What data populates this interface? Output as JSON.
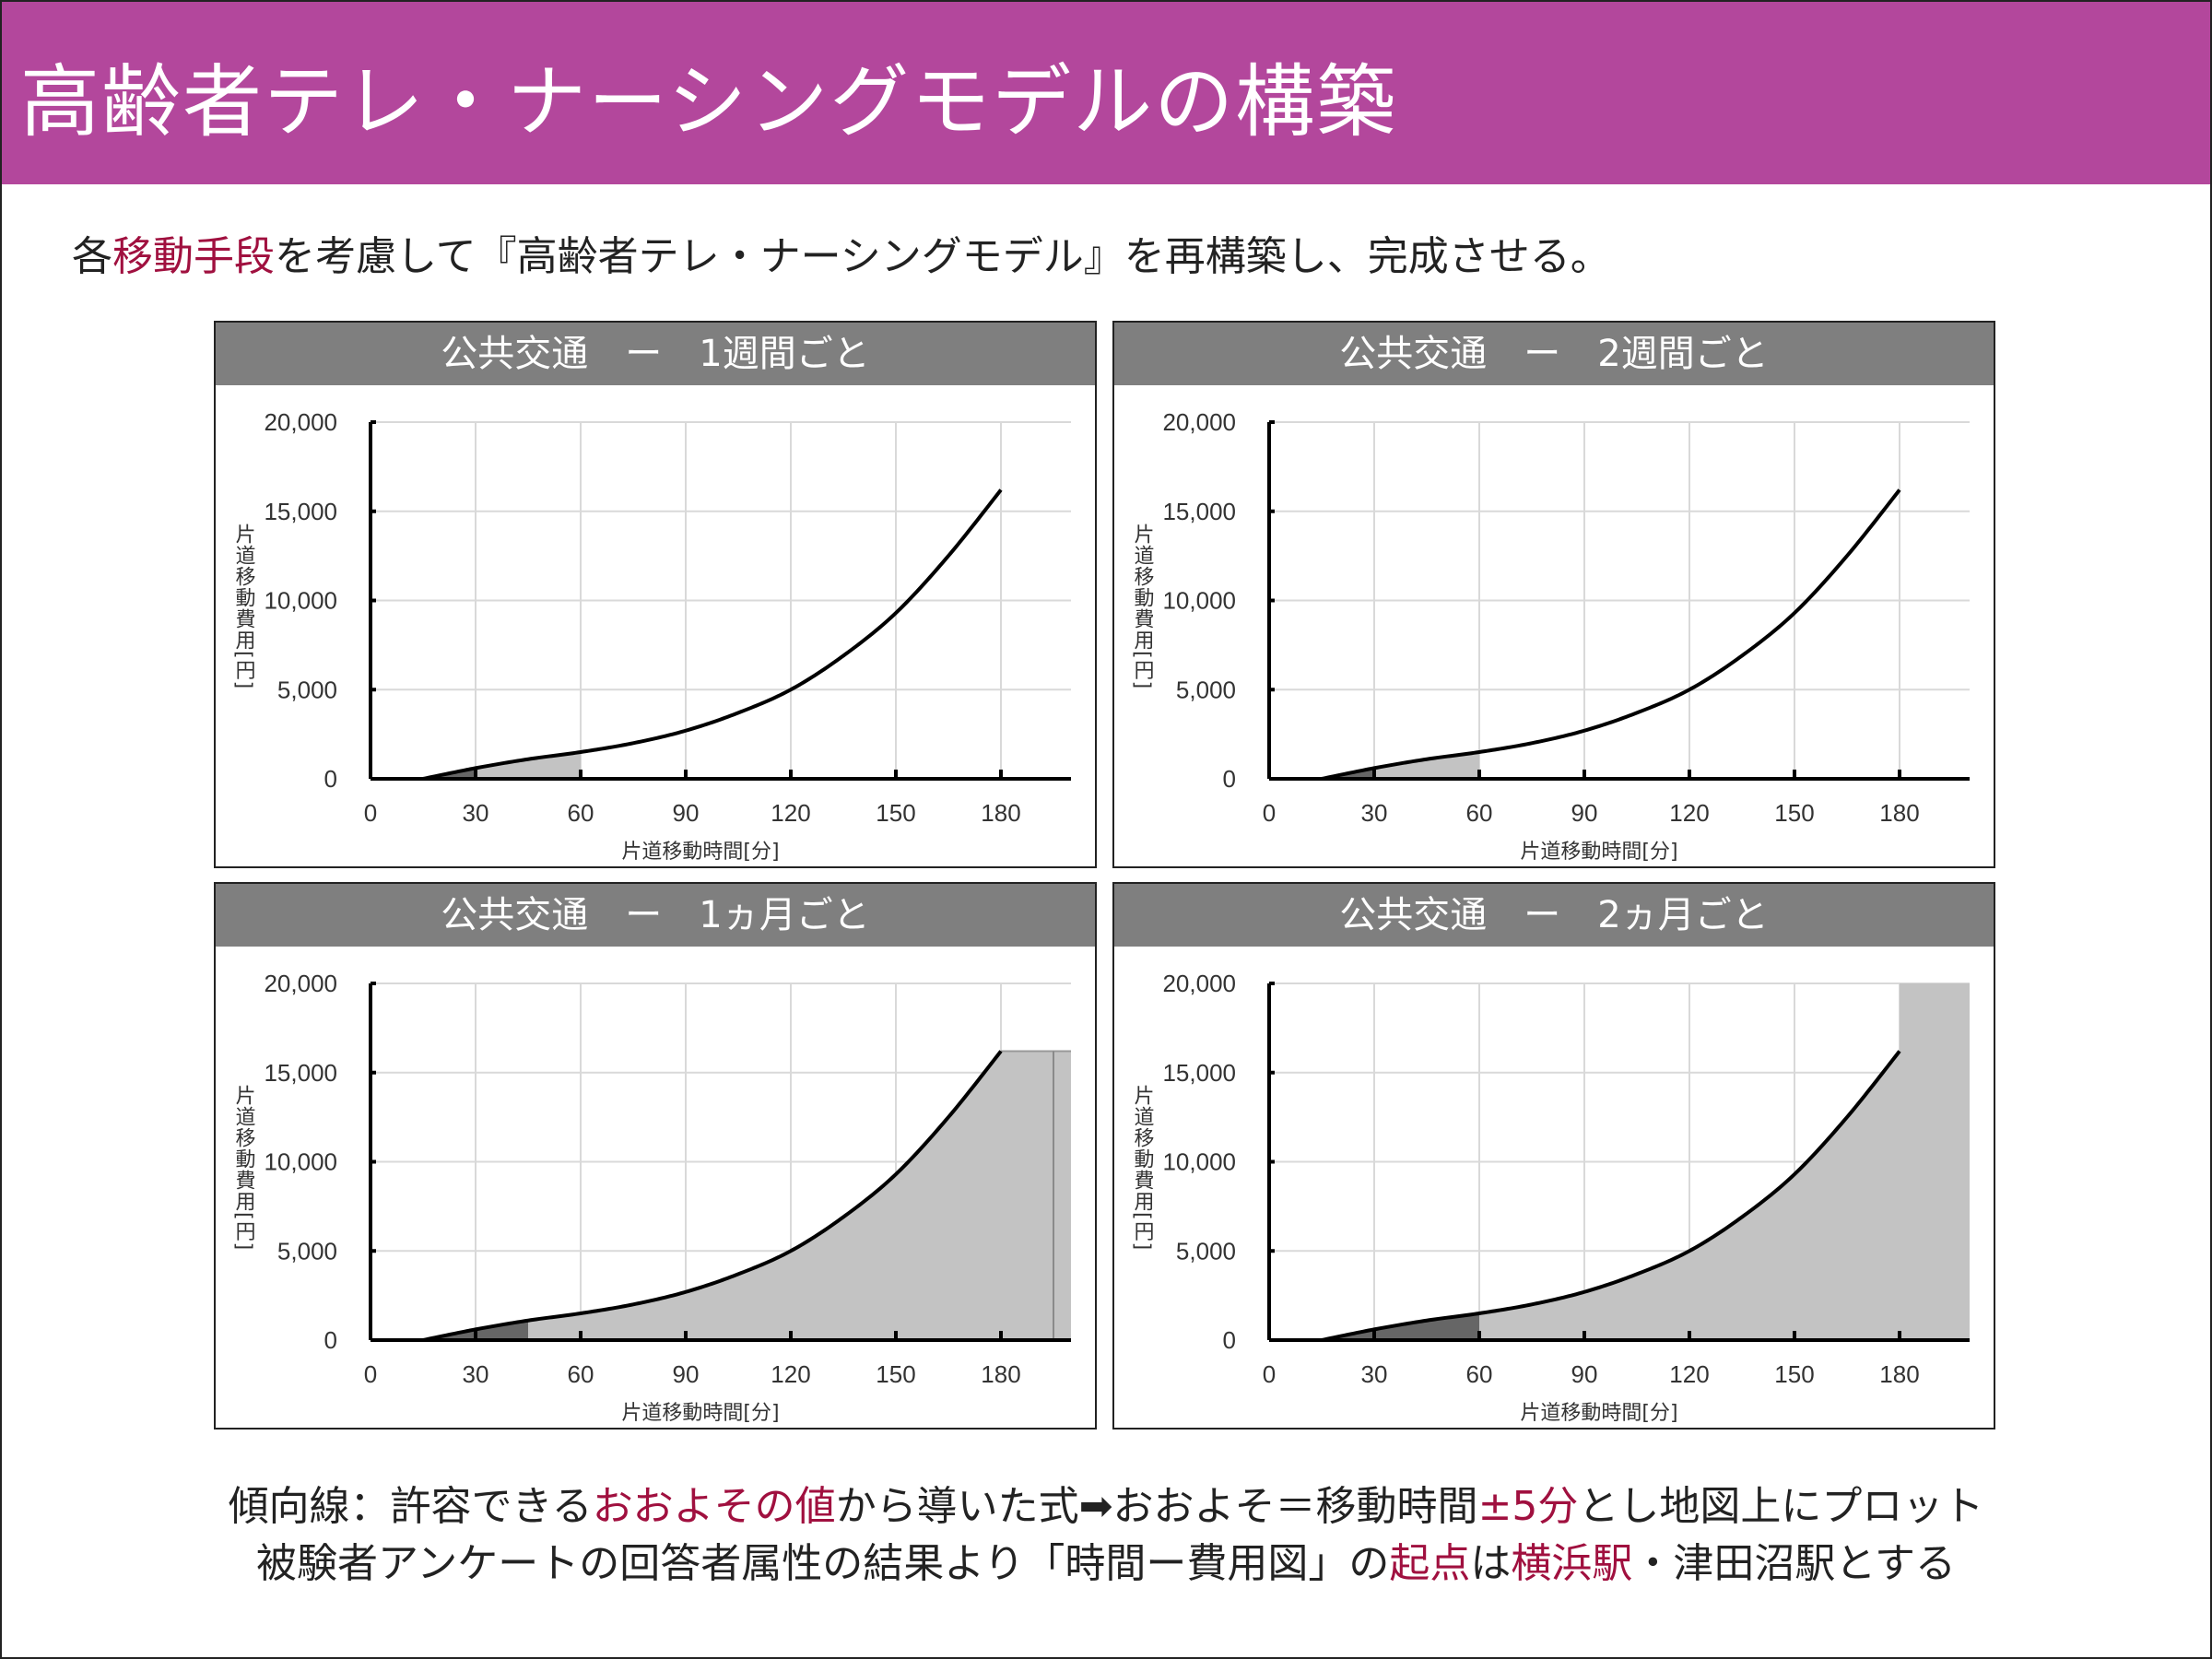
{
  "header": {
    "title": "高齢者テレ・ナーシングモデルの構築"
  },
  "subtitle": {
    "pre": "各",
    "highlight": "移動手段",
    "post": "を考慮して『高齢者テレ・ナーシングモデル』を再構築し、完成させる。"
  },
  "colors": {
    "accent": "#b3479c",
    "highlight": "#a0103f",
    "panel_header": "#7f7f7f",
    "dark_fill": "#666666",
    "light_fill": "#c3c3c3"
  },
  "chart_data": [
    {
      "type": "line",
      "title": "公共交通　ー　1週間ごと",
      "xlabel": "片道移動時間[分]",
      "ylabel": "片道移動費用[円]",
      "xlim": [
        0,
        200
      ],
      "ylim": [
        0,
        20000
      ],
      "xticks": [
        "0",
        "30",
        "60",
        "90",
        "120",
        "150",
        "180"
      ],
      "yticks": [
        "0",
        "5,000",
        "10,000",
        "15,000",
        "20,000"
      ],
      "grid": true,
      "x": [
        15,
        30,
        45,
        60,
        75,
        90,
        105,
        120,
        135,
        150,
        165,
        180
      ],
      "y": [
        0,
        600,
        1100,
        1500,
        2000,
        2700,
        3700,
        5000,
        6900,
        9300,
        12500,
        16200
      ],
      "shaded": [
        {
          "from": 15,
          "to": 30,
          "shade": "dark"
        },
        {
          "from": 30,
          "to": 60,
          "shade": "light"
        }
      ],
      "extension": null
    },
    {
      "type": "line",
      "title": "公共交通　ー　2週間ごと",
      "xlabel": "片道移動時間[分]",
      "ylabel": "片道移動費用[円]",
      "xlim": [
        0,
        200
      ],
      "ylim": [
        0,
        20000
      ],
      "xticks": [
        "0",
        "30",
        "60",
        "90",
        "120",
        "150",
        "180"
      ],
      "yticks": [
        "0",
        "5,000",
        "10,000",
        "15,000",
        "20,000"
      ],
      "grid": true,
      "x": [
        15,
        30,
        45,
        60,
        75,
        90,
        105,
        120,
        135,
        150,
        165,
        180
      ],
      "y": [
        0,
        600,
        1100,
        1500,
        2000,
        2700,
        3700,
        5000,
        6900,
        9300,
        12500,
        16200
      ],
      "shaded": [
        {
          "from": 15,
          "to": 30,
          "shade": "dark"
        },
        {
          "from": 30,
          "to": 60,
          "shade": "light"
        }
      ],
      "extension": null
    },
    {
      "type": "line",
      "title": "公共交通　ー　1ヵ月ごと",
      "xlabel": "片道移動時間[分]",
      "ylabel": "片道移動費用[円]",
      "xlim": [
        0,
        200
      ],
      "ylim": [
        0,
        20000
      ],
      "xticks": [
        "0",
        "30",
        "60",
        "90",
        "120",
        "150",
        "180"
      ],
      "yticks": [
        "0",
        "5,000",
        "10,000",
        "15,000",
        "20,000"
      ],
      "grid": true,
      "x": [
        15,
        30,
        45,
        60,
        75,
        90,
        105,
        120,
        135,
        150,
        165,
        180
      ],
      "y": [
        0,
        600,
        1100,
        1500,
        2000,
        2700,
        3700,
        5000,
        6900,
        9300,
        12500,
        16200
      ],
      "shaded": [
        {
          "from": 15,
          "to": 45,
          "shade": "dark"
        },
        {
          "from": 45,
          "to": 180,
          "shade": "light"
        }
      ],
      "extension": {
        "from": 180,
        "to": 200,
        "value": 16200,
        "divider": 195
      }
    },
    {
      "type": "line",
      "title": "公共交通　ー　2ヵ月ごと",
      "xlabel": "片道移動時間[分]",
      "ylabel": "片道移動費用[円]",
      "xlim": [
        0,
        200
      ],
      "ylim": [
        0,
        20000
      ],
      "xticks": [
        "0",
        "30",
        "60",
        "90",
        "120",
        "150",
        "180"
      ],
      "yticks": [
        "0",
        "5,000",
        "10,000",
        "15,000",
        "20,000"
      ],
      "grid": true,
      "x": [
        15,
        30,
        45,
        60,
        75,
        90,
        105,
        120,
        135,
        150,
        165,
        180
      ],
      "y": [
        0,
        600,
        1100,
        1500,
        2000,
        2700,
        3700,
        5000,
        6900,
        9300,
        12500,
        16200
      ],
      "shaded": [
        {
          "from": 15,
          "to": 60,
          "shade": "dark"
        },
        {
          "from": 60,
          "to": 180,
          "shade": "light"
        }
      ],
      "extension": {
        "from": 180,
        "to": 200,
        "value": 20000,
        "divider": null
      }
    }
  ],
  "footer": {
    "line1": [
      {
        "t": "傾向線：許容できる",
        "hl": false
      },
      {
        "t": "おおよその値",
        "hl": true
      },
      {
        "t": "から導いた式➡おおよそ＝移動時間",
        "hl": false
      },
      {
        "t": "±5分",
        "hl": true
      },
      {
        "t": "とし地図上にプロット",
        "hl": false
      }
    ],
    "line2": [
      {
        "t": "被験者アンケートの回答者属性の結果より「時間ー費用図」の",
        "hl": false
      },
      {
        "t": "起点",
        "hl": true
      },
      {
        "t": "は",
        "hl": false
      },
      {
        "t": "横浜駅",
        "hl": true
      },
      {
        "t": "・津田沼駅とする",
        "hl": false
      }
    ]
  }
}
